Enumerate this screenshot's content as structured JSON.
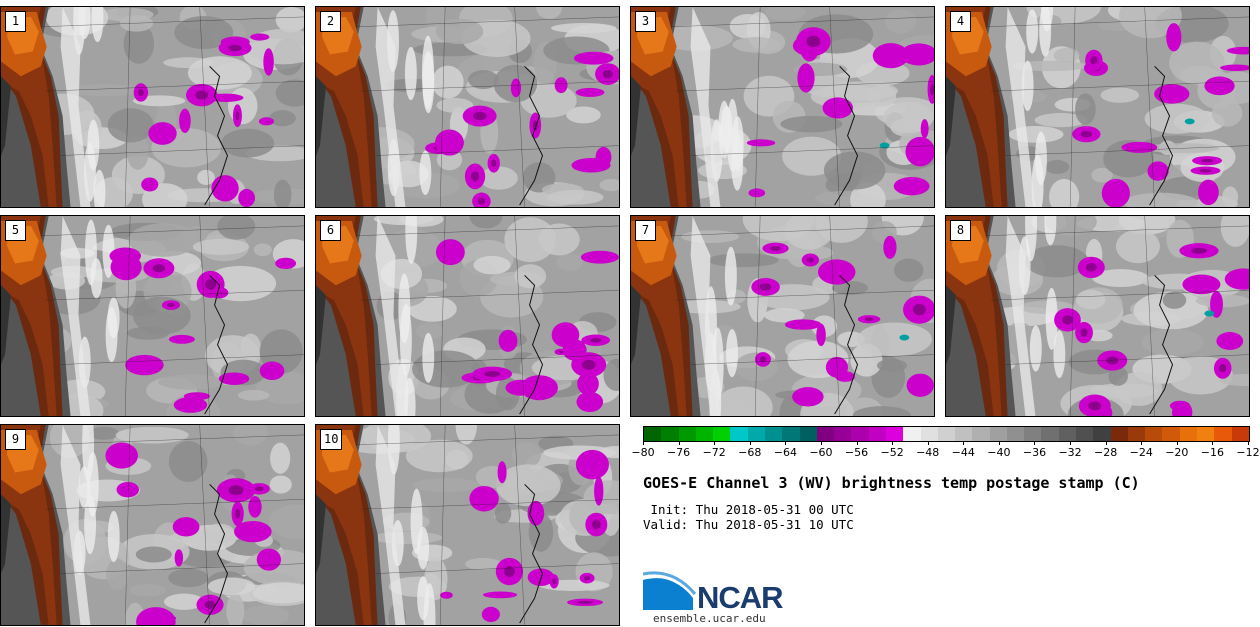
{
  "panels": [
    {
      "label": "1"
    },
    {
      "label": "2"
    },
    {
      "label": "3"
    },
    {
      "label": "4"
    },
    {
      "label": "5"
    },
    {
      "label": "6"
    },
    {
      "label": "7"
    },
    {
      "label": "8"
    },
    {
      "label": "9"
    },
    {
      "label": "10"
    }
  ],
  "colorbar": {
    "colors": [
      "#006400",
      "#007f00",
      "#009a00",
      "#00b400",
      "#00cf00",
      "#00c8c8",
      "#00aaaa",
      "#009090",
      "#007878",
      "#006060",
      "#800080",
      "#960096",
      "#ac00ac",
      "#c200c2",
      "#dc00dc",
      "#f0f0f0",
      "#e0e0e0",
      "#d0d0d0",
      "#c0c0c0",
      "#b0b0b0",
      "#a0a0a0",
      "#909090",
      "#808080",
      "#707070",
      "#606060",
      "#505050",
      "#404040",
      "#7a2a0a",
      "#9a3a0a",
      "#b84a0a",
      "#d05a0a",
      "#e8700a",
      "#f08010",
      "#e85a0a",
      "#c83a0a"
    ],
    "tick_labels": [
      "−80",
      "−76",
      "−72",
      "−68",
      "−64",
      "−60",
      "−56",
      "−52",
      "−48",
      "−44",
      "−40",
      "−36",
      "−32",
      "−28",
      "−24",
      "−20",
      "−16",
      "−12"
    ]
  },
  "title": "GOES-E Channel 3 (WV) brightness temp postage stamp (C)",
  "init": " Init: Thu 2018-05-31 00 UTC",
  "valid": "Valid: Thu 2018-05-31 10 UTC",
  "logo_text": "NCAR",
  "url": "ensemble.ucar.edu"
}
